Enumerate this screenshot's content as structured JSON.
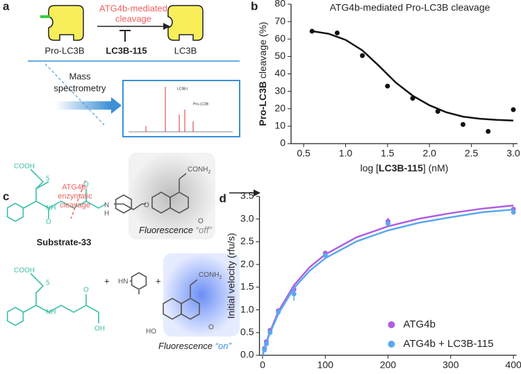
{
  "panel_a": {
    "label": "a",
    "enzyme": [
      "ATG4b-mediated",
      "cleavage"
    ],
    "inhibitor": "LC3B-115",
    "substrate": "Pro-LC3B",
    "product": "LC3B",
    "method": [
      "Mass",
      "spectrometry"
    ],
    "spectrum_labels": [
      "LC3B-I",
      "Pro-LC3B"
    ]
  },
  "panel_c": {
    "label": "c",
    "cleavage": [
      "ATG4b-",
      "enzymatic",
      "cleavage"
    ],
    "substrate": "Substrate-33",
    "acid": "COOH",
    "acid2": "COOH",
    "repeat": "5",
    "repeat2": "5",
    "nh": "NH",
    "nh2": "NH",
    "nh3": "H",
    "n": "N",
    "amide": [
      "CONH",
      "2"
    ],
    "amide2": [
      "CONH",
      "2"
    ],
    "oxy": [
      "O",
      "O",
      "O",
      "O",
      "O",
      "O"
    ],
    "oh": "OH",
    "hn": "HN",
    "ho": "HO",
    "plus": [
      "+",
      "+"
    ],
    "off": [
      "Fluorescence ",
      "“off”"
    ],
    "on": [
      "Fluorescence ",
      "“on”"
    ]
  },
  "chart_data": [
    {
      "type": "scatter",
      "label": "b",
      "title": "ATG4b-mediated Pro-LC3B cleavage",
      "x_label": [
        "log [",
        "LC3B-115",
        "] (nM)"
      ],
      "y_label": [
        "Pro-LC3B",
        " cleavage (%)"
      ],
      "color": "#111111",
      "x": [
        0.6,
        0.9,
        1.2,
        1.5,
        1.8,
        2.1,
        2.4,
        2.7,
        3.0
      ],
      "values": [
        64.5,
        63.5,
        50.5,
        33,
        26,
        18.5,
        11,
        7,
        19.5
      ],
      "fit_x": [
        0.6,
        0.8,
        1.0,
        1.2,
        1.4,
        1.6,
        1.8,
        2.0,
        2.2,
        2.4,
        2.6,
        2.8,
        3.0
      ],
      "fit_values": [
        64.5,
        63,
        59.5,
        53.5,
        44.5,
        35,
        27.5,
        22,
        18,
        15.5,
        14.3,
        13.6,
        13.2
      ],
      "xlim": [
        0.35,
        3.05
      ],
      "xticks": [
        {
          "value": 0.5,
          "label": "0.5"
        },
        {
          "value": 1,
          "label": "1.0"
        },
        {
          "value": 1.5,
          "label": "1.5"
        },
        {
          "value": 2,
          "label": "2.0"
        },
        {
          "value": 2.5,
          "label": "2.5"
        },
        {
          "value": 3,
          "label": "3.0"
        }
      ],
      "ylim": [
        0,
        80
      ],
      "yticks": [
        0,
        10,
        20,
        30,
        40,
        50,
        60,
        70,
        80
      ]
    },
    {
      "type": "scatter",
      "label": "d",
      "x_label": [
        "[Substrate-33] (μM)"
      ],
      "y_label": [
        "Initial velocity (rfu/s)"
      ],
      "legend": "lower right",
      "x": [
        3,
        6,
        12,
        25,
        50,
        100,
        200,
        400
      ],
      "fit_x": [
        0,
        10,
        25,
        50,
        75,
        100,
        150,
        200,
        250,
        300,
        350,
        400
      ],
      "series": [
        {
          "name": "ATG4b",
          "color": "#b05ee0",
          "values": [
            0.15,
            0.3,
            0.55,
            0.98,
            1.45,
            2.25,
            2.95,
            3.22
          ],
          "errors": [
            0.03,
            0.03,
            0.03,
            0.04,
            0.08,
            0.04,
            0.08,
            0.05
          ],
          "fit_values": [
            0,
            0.45,
            0.96,
            1.54,
            1.94,
            2.22,
            2.6,
            2.84,
            3.01,
            3.13,
            3.23,
            3.3
          ]
        },
        {
          "name": "ATG4b + LC3B-115",
          "color": "#5aa8ef",
          "values": [
            0.12,
            0.25,
            0.5,
            0.95,
            1.35,
            2.2,
            2.9,
            3.15
          ],
          "errors": [
            0.03,
            0.03,
            0.03,
            0.04,
            0.15,
            0.04,
            0.06,
            0.05
          ],
          "fit_values": [
            0,
            0.43,
            0.91,
            1.48,
            1.86,
            2.14,
            2.51,
            2.75,
            2.92,
            3.04,
            3.15,
            3.21
          ]
        }
      ],
      "xlim": [
        -5,
        405
      ],
      "xticks": [
        0,
        100,
        200,
        300,
        400
      ],
      "ylim": [
        0,
        3.5
      ],
      "yticks": [
        {
          "value": 0,
          "label": "0.0"
        },
        0.5,
        {
          "value": 1,
          "label": "1.0"
        },
        1.5,
        {
          "value": 2,
          "label": "2.0"
        },
        2.5,
        {
          "value": 3,
          "label": "3.0"
        },
        3.5
      ]
    }
  ]
}
